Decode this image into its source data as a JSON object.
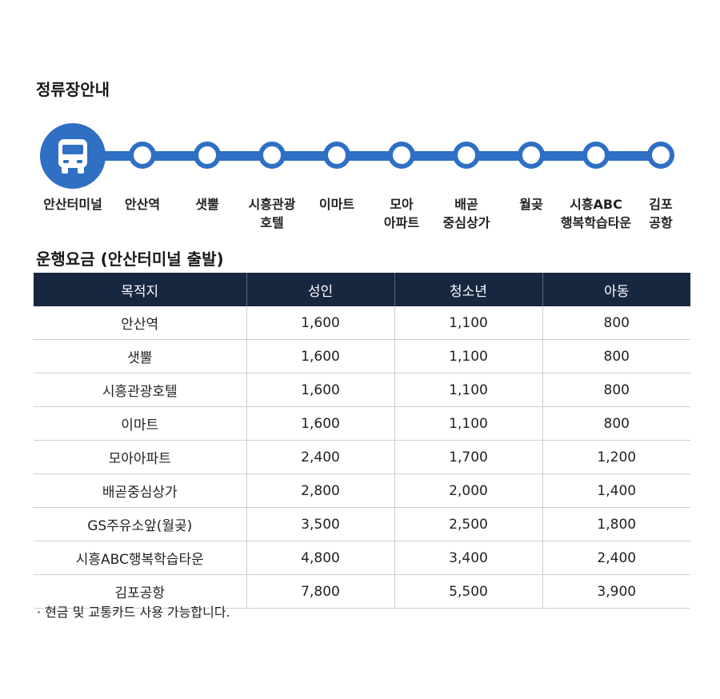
{
  "stops_title": "정류장안내",
  "stops": [
    {
      "label": "안산터미널",
      "icon": "bus-icon"
    },
    {
      "label": "안산역"
    },
    {
      "label": "샛뿔"
    },
    {
      "label": "시흥관광\n호텔"
    },
    {
      "label": "이마트"
    },
    {
      "label": "모아\n아파트"
    },
    {
      "label": "배곧\n중심상가"
    },
    {
      "label": "월곶"
    },
    {
      "label": "시흥ABC\n행복학습타운"
    },
    {
      "label": "김포\n공항"
    }
  ],
  "fare_title": "운행요금 (안산터미널 출발)",
  "fare_table": {
    "headers": [
      "목적지",
      "성인",
      "청소년",
      "아동"
    ],
    "rows": [
      [
        "안산역",
        "1,600",
        "1,100",
        "800"
      ],
      [
        "샛뿔",
        "1,600",
        "1,100",
        "800"
      ],
      [
        "시흥관광호텔",
        "1,600",
        "1,100",
        "800"
      ],
      [
        "이마트",
        "1,600",
        "1,100",
        "800"
      ],
      [
        "모아아파트",
        "2,400",
        "1,700",
        "1,200"
      ],
      [
        "배곧중심상가",
        "2,800",
        "2,000",
        "1,400"
      ],
      [
        "GS주유소앞(월곶)",
        "3,500",
        "2,500",
        "1,800"
      ],
      [
        "시흥ABC행복학습타운",
        "4,800",
        "3,400",
        "2,400"
      ],
      [
        "김포공항",
        "7,800",
        "5,500",
        "3,900"
      ]
    ]
  },
  "note": "· 현금 및 교통카드 사용 가능합니다.",
  "colors": {
    "route": "#2f6fc4",
    "header_bg": "#182740"
  }
}
